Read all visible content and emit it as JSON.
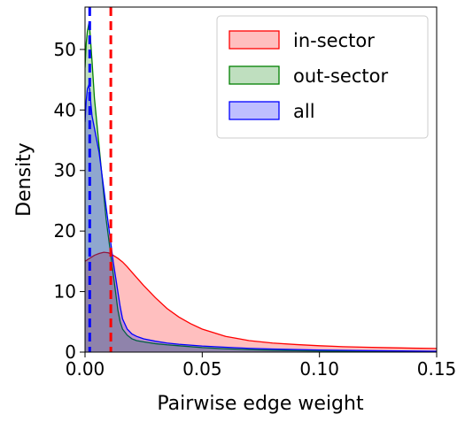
{
  "chart_data": {
    "type": "area",
    "title": "",
    "xlabel": "Pairwise edge weight",
    "ylabel": "Density",
    "xlim": [
      0.0,
      0.15
    ],
    "ylim": [
      0,
      57
    ],
    "xticks": [
      0.0,
      0.05,
      0.1,
      0.15
    ],
    "xtick_labels": [
      "0.00",
      "0.05",
      "0.10",
      "0.15"
    ],
    "yticks": [
      0,
      10,
      20,
      30,
      40,
      50
    ],
    "ytick_labels": [
      "0",
      "10",
      "20",
      "30",
      "40",
      "50"
    ],
    "grid": false,
    "legend_position": "top-right",
    "series": [
      {
        "name": "in-sector",
        "color": "#ff0000",
        "fill": "#ff0000",
        "x": [
          0.0,
          0.002,
          0.004,
          0.006,
          0.008,
          0.01,
          0.012,
          0.014,
          0.016,
          0.018,
          0.02,
          0.025,
          0.03,
          0.035,
          0.04,
          0.045,
          0.05,
          0.06,
          0.07,
          0.08,
          0.09,
          0.1,
          0.11,
          0.12,
          0.13,
          0.14,
          0.15
        ],
        "y": [
          15.0,
          15.5,
          16.0,
          16.3,
          16.5,
          16.4,
          16.0,
          15.5,
          14.9,
          14.1,
          13.2,
          11.0,
          9.0,
          7.2,
          5.8,
          4.7,
          3.8,
          2.6,
          1.9,
          1.5,
          1.25,
          1.05,
          0.9,
          0.8,
          0.72,
          0.65,
          0.6
        ]
      },
      {
        "name": "out-sector",
        "color": "#008000",
        "fill": "#008000",
        "x": [
          0.0,
          0.0005,
          0.001,
          0.0015,
          0.002,
          0.003,
          0.004,
          0.005,
          0.006,
          0.007,
          0.008,
          0.009,
          0.01,
          0.011,
          0.012,
          0.013,
          0.014,
          0.015,
          0.016,
          0.018,
          0.02,
          0.022,
          0.025,
          0.03,
          0.035,
          0.04,
          0.05,
          0.06,
          0.07,
          0.08,
          0.1,
          0.12,
          0.15
        ],
        "y": [
          47.0,
          51.0,
          53.0,
          54.0,
          53.5,
          48.0,
          42.0,
          38.0,
          34.0,
          30.0,
          26.0,
          22.0,
          19.0,
          16.0,
          13.0,
          10.0,
          7.0,
          5.0,
          3.8,
          2.8,
          2.2,
          1.9,
          1.7,
          1.4,
          1.2,
          1.05,
          0.75,
          0.55,
          0.4,
          0.3,
          0.18,
          0.1,
          0.05
        ]
      },
      {
        "name": "all",
        "color": "#0000ff",
        "fill": "#0000ff",
        "x": [
          0.0,
          0.0005,
          0.001,
          0.0015,
          0.002,
          0.0025,
          0.003,
          0.004,
          0.005,
          0.006,
          0.007,
          0.008,
          0.009,
          0.01,
          0.011,
          0.012,
          0.013,
          0.014,
          0.015,
          0.016,
          0.018,
          0.02,
          0.022,
          0.025,
          0.03,
          0.035,
          0.04,
          0.05,
          0.06,
          0.07,
          0.08,
          0.1,
          0.12,
          0.15
        ],
        "y": [
          38.0,
          41.5,
          43.5,
          44.0,
          43.5,
          41.0,
          39.0,
          37.0,
          35.0,
          33.0,
          30.0,
          27.0,
          24.0,
          21.0,
          18.0,
          15.0,
          12.5,
          10.0,
          7.5,
          5.5,
          3.8,
          3.0,
          2.6,
          2.2,
          1.8,
          1.5,
          1.3,
          1.0,
          0.8,
          0.62,
          0.5,
          0.35,
          0.25,
          0.15
        ]
      }
    ],
    "vlines": [
      {
        "x": 0.002,
        "color": "#0000ff",
        "style": "dashed"
      },
      {
        "x": 0.011,
        "color": "#ff0000",
        "style": "dashed"
      }
    ]
  }
}
